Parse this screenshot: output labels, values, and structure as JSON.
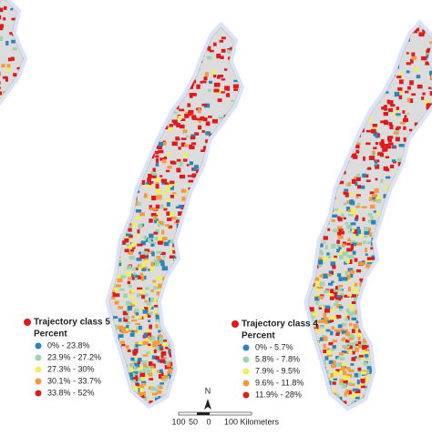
{
  "legends": [
    {
      "title": "Trajectory class 5",
      "subtitle": "Percent",
      "items": [
        {
          "label": "0% - 23.8%",
          "color": "#2b83ba"
        },
        {
          "label": "23.9% - 27.2%",
          "color": "#9fd3b0"
        },
        {
          "label": "27.3% - 30%",
          "color": "#f2ee5a"
        },
        {
          "label": "30.1% - 33.7%",
          "color": "#f59a3c"
        },
        {
          "label": "33.8% - 52%",
          "color": "#e0191c"
        }
      ]
    },
    {
      "title": "Trajectory class 4",
      "subtitle": "Percent",
      "items": [
        {
          "label": "0% - 5.7%",
          "color": "#2b83ba"
        },
        {
          "label": "5.8% - 7.8%",
          "color": "#9fd3b0"
        },
        {
          "label": "7.9% - 9.5%",
          "color": "#f2ee5a"
        },
        {
          "label": "9.6% - 11.8%",
          "color": "#f59a3c"
        },
        {
          "label": "11.9% - 28%",
          "color": "#e0191c"
        }
      ]
    }
  ],
  "scale_bar": {
    "north": "N",
    "labels": [
      "100",
      "50",
      "0",
      "100 Kilometers"
    ]
  }
}
